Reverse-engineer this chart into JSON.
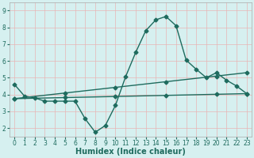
{
  "bg_color": "#d6f0f0",
  "grid_color": "#e8b4b4",
  "line_color": "#1e6b5e",
  "marker": "D",
  "markersize": 2.5,
  "linewidth": 1.0,
  "xlabel": "Humidex (Indice chaleur)",
  "xlabel_fontsize": 7,
  "tick_fontsize": 5.5,
  "xlim": [
    -0.5,
    23.5
  ],
  "ylim": [
    1.5,
    9.5
  ],
  "yticks": [
    2,
    3,
    4,
    5,
    6,
    7,
    8,
    9
  ],
  "xticks": [
    0,
    1,
    2,
    3,
    4,
    5,
    6,
    7,
    8,
    9,
    10,
    11,
    12,
    13,
    14,
    15,
    16,
    17,
    18,
    19,
    20,
    21,
    22,
    23
  ],
  "curve1_x": [
    0,
    1,
    2,
    3,
    4,
    5,
    6,
    7,
    8,
    9,
    10,
    11,
    12,
    13,
    14,
    15,
    16,
    17,
    18,
    19,
    20,
    21,
    22,
    23
  ],
  "curve1_y": [
    4.6,
    3.9,
    3.8,
    3.6,
    3.6,
    3.6,
    3.6,
    2.55,
    1.75,
    2.15,
    3.35,
    5.05,
    6.5,
    7.8,
    8.45,
    8.65,
    8.1,
    6.05,
    5.5,
    5.0,
    5.3,
    4.85,
    4.5,
    4.05
  ],
  "curve2_x": [
    0,
    23
  ],
  "curve2_y": [
    3.75,
    5.3
  ],
  "curve3_x": [
    0,
    23
  ],
  "curve3_y": [
    3.75,
    4.05
  ],
  "curve2_markers_x": [
    0,
    5,
    10,
    15,
    20,
    23
  ],
  "curve2_markers_y": [
    3.75,
    4.08,
    4.42,
    4.75,
    5.08,
    5.3
  ],
  "curve3_markers_x": [
    0,
    5,
    10,
    15,
    20,
    23
  ],
  "curve3_markers_y": [
    3.75,
    3.82,
    3.89,
    3.95,
    4.01,
    4.05
  ]
}
